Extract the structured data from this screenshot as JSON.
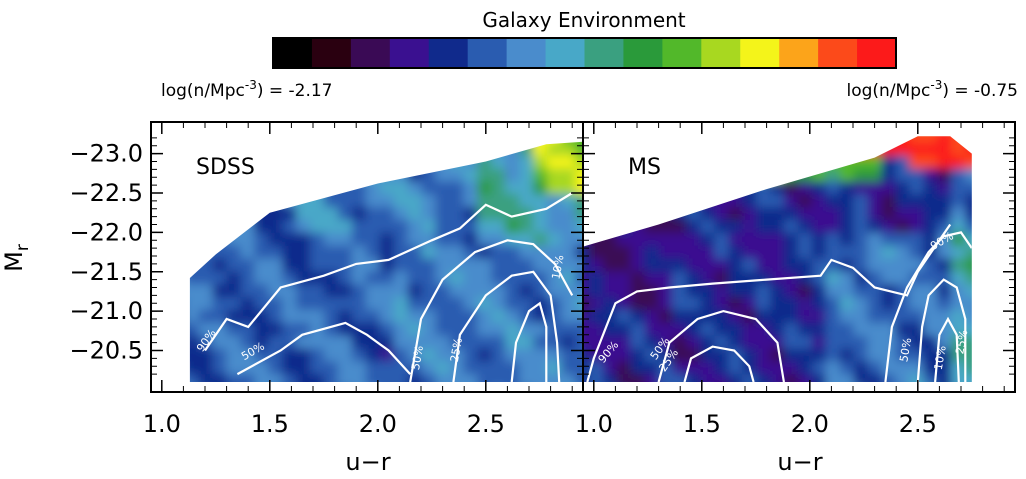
{
  "chart_data": {
    "type": "heatmap",
    "colorbar": {
      "title": "Galaxy Environment",
      "min_label": "log(n/Mpc^-3) = -2.17",
      "max_label": "log(n/Mpc^-3) = -0.75",
      "min": -2.17,
      "max": -0.75,
      "colors": [
        "#000000",
        "#2a0010",
        "#3a0a55",
        "#3a1090",
        "#102a8c",
        "#2a5cb0",
        "#4a8ccc",
        "#48a8c8",
        "#3aa080",
        "#2a9a3a",
        "#52b82a",
        "#a8d820",
        "#f4f41a",
        "#fca41a",
        "#fc4a1a",
        "#fc1a1a"
      ]
    },
    "panels": [
      {
        "label": "SDSS",
        "xlabel": "u−r",
        "ylabel": "M_r",
        "xlim": [
          0.95,
          2.95
        ],
        "ylim": [
          -20.1,
          -23.3
        ],
        "xticks": [
          "1.0",
          "1.5",
          "2.0",
          "2.5"
        ],
        "yticks": [
          "−23.0",
          "−22.5",
          "−22.0",
          "−21.5",
          "−21.0",
          "−20.5"
        ],
        "contour_labels": [
          "90%",
          "50%",
          "50%",
          "25%",
          "10%"
        ],
        "boundary": [
          [
            1.13,
            -20.1
          ],
          [
            1.13,
            -21.42
          ],
          [
            1.25,
            -21.72
          ],
          [
            1.5,
            -22.25
          ],
          [
            2.0,
            -22.62
          ],
          [
            2.5,
            -22.9
          ],
          [
            2.78,
            -23.12
          ],
          [
            2.95,
            -23.15
          ],
          [
            2.95,
            -20.1
          ]
        ]
      },
      {
        "label": "MS",
        "xlabel": "u−r",
        "ylabel": "",
        "xlim": [
          0.95,
          2.95
        ],
        "ylim": [
          -20.1,
          -23.3
        ],
        "xticks": [
          "1.0",
          "1.5",
          "2.0",
          "2.5"
        ],
        "yticks": [],
        "contour_labels": [
          "90%",
          "50%",
          "25%",
          "90%",
          "50%",
          "10%",
          "25%"
        ],
        "boundary": [
          [
            0.95,
            -20.1
          ],
          [
            0.95,
            -21.82
          ],
          [
            1.3,
            -22.1
          ],
          [
            1.8,
            -22.55
          ],
          [
            2.3,
            -22.95
          ],
          [
            2.5,
            -23.22
          ],
          [
            2.65,
            -23.22
          ],
          [
            2.75,
            -23.0
          ],
          [
            2.75,
            -20.1
          ]
        ]
      }
    ]
  }
}
